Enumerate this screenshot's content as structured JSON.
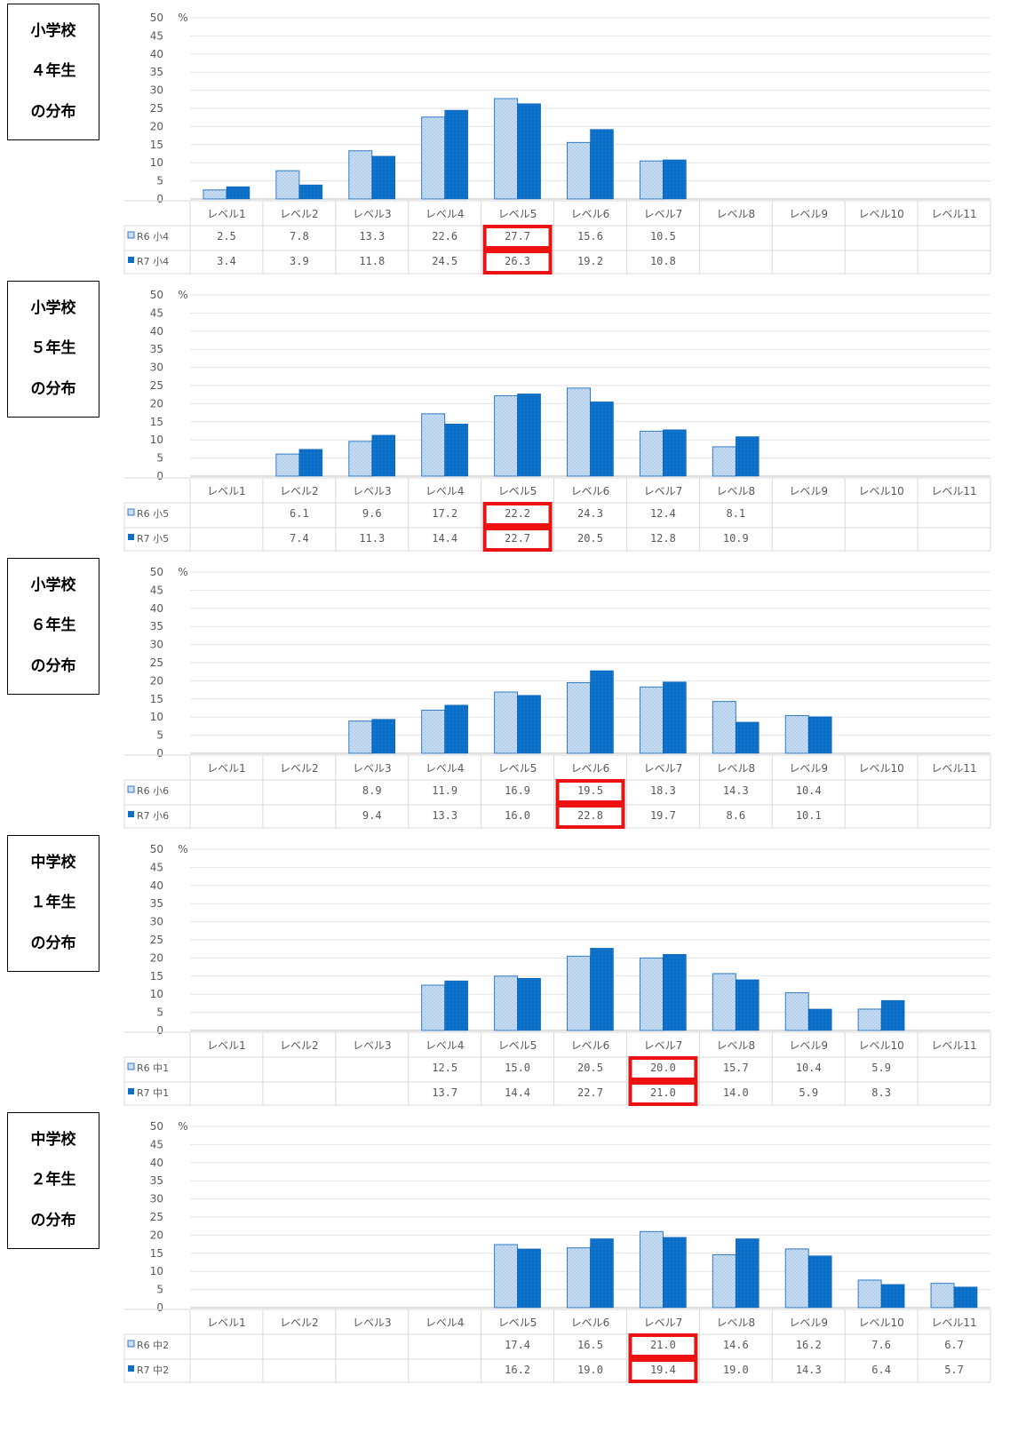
{
  "colors": {
    "r6_fill": "#c9def3",
    "r6_stroke": "#2f7cc6",
    "r7_fill": "#0b6fc8",
    "highlight": "#ee1111"
  },
  "chart_data": [
    {
      "type": "bar",
      "panel_label": [
        "小学校",
        "４年生",
        "の分布"
      ],
      "unit": "%",
      "ylim": [
        0,
        50
      ],
      "yticks": [
        0,
        5,
        10,
        15,
        20,
        25,
        30,
        35,
        40,
        45,
        50
      ],
      "categories": [
        "レベル1",
        "レベル2",
        "レベル3",
        "レベル4",
        "レベル5",
        "レベル6",
        "レベル7",
        "レベル8",
        "レベル9",
        "レベル10",
        "レベル11"
      ],
      "series": [
        {
          "name": "R6 小4",
          "values": [
            2.5,
            7.8,
            13.3,
            22.6,
            27.7,
            15.6,
            10.5,
            null,
            null,
            null,
            null
          ]
        },
        {
          "name": "R7 小4",
          "values": [
            3.4,
            3.9,
            11.8,
            24.5,
            26.3,
            19.2,
            10.8,
            null,
            null,
            null,
            null
          ]
        }
      ],
      "labels": [
        [
          "2.5",
          "7.8",
          "13.3",
          "22.6",
          "27.7",
          "15.6",
          "10.5",
          "",
          "",
          "",
          ""
        ],
        [
          "3.4",
          "3.9",
          "11.8",
          "24.5",
          "26.3",
          "19.2",
          "10.8",
          "",
          "",
          "",
          ""
        ]
      ],
      "highlight_index": 4
    },
    {
      "type": "bar",
      "panel_label": [
        "小学校",
        "５年生",
        "の分布"
      ],
      "unit": "%",
      "ylim": [
        0,
        50
      ],
      "yticks": [
        0,
        5,
        10,
        15,
        20,
        25,
        30,
        35,
        40,
        45,
        50
      ],
      "categories": [
        "レベル1",
        "レベル2",
        "レベル3",
        "レベル4",
        "レベル5",
        "レベル6",
        "レベル7",
        "レベル8",
        "レベル9",
        "レベル10",
        "レベル11"
      ],
      "series": [
        {
          "name": "R6 小5",
          "values": [
            null,
            6.1,
            9.6,
            17.2,
            22.2,
            24.3,
            12.4,
            8.1,
            null,
            null,
            null
          ]
        },
        {
          "name": "R7 小5",
          "values": [
            null,
            7.4,
            11.3,
            14.4,
            22.7,
            20.5,
            12.8,
            10.9,
            null,
            null,
            null
          ]
        }
      ],
      "labels": [
        [
          "",
          "6.1",
          "9.6",
          "17.2",
          "22.2",
          "24.3",
          "12.4",
          "8.1",
          "",
          "",
          ""
        ],
        [
          "",
          "7.4",
          "11.3",
          "14.4",
          "22.7",
          "20.5",
          "12.8",
          "10.9",
          "",
          "",
          ""
        ]
      ],
      "highlight_index": 4
    },
    {
      "type": "bar",
      "panel_label": [
        "小学校",
        "６年生",
        "の分布"
      ],
      "unit": "%",
      "ylim": [
        0,
        50
      ],
      "yticks": [
        0,
        5,
        10,
        15,
        20,
        25,
        30,
        35,
        40,
        45,
        50
      ],
      "categories": [
        "レベル1",
        "レベル2",
        "レベル3",
        "レベル4",
        "レベル5",
        "レベル6",
        "レベル7",
        "レベル8",
        "レベル9",
        "レベル10",
        "レベル11"
      ],
      "series": [
        {
          "name": "R6 小6",
          "values": [
            null,
            null,
            8.9,
            11.9,
            16.9,
            19.5,
            18.3,
            14.3,
            10.4,
            null,
            null
          ]
        },
        {
          "name": "R7 小6",
          "values": [
            null,
            null,
            9.4,
            13.3,
            16.0,
            22.8,
            19.7,
            8.6,
            10.1,
            null,
            null
          ]
        }
      ],
      "labels": [
        [
          "",
          "",
          "8.9",
          "11.9",
          "16.9",
          "19.5",
          "18.3",
          "14.3",
          "10.4",
          "",
          ""
        ],
        [
          "",
          "",
          "9.4",
          "13.3",
          "16.0",
          "22.8",
          "19.7",
          "8.6",
          "10.1",
          "",
          ""
        ]
      ],
      "highlight_index": 5
    },
    {
      "type": "bar",
      "panel_label": [
        "中学校",
        "１年生",
        "の分布"
      ],
      "unit": "%",
      "ylim": [
        0,
        50
      ],
      "yticks": [
        0,
        5,
        10,
        15,
        20,
        25,
        30,
        35,
        40,
        45,
        50
      ],
      "categories": [
        "レベル1",
        "レベル2",
        "レベル3",
        "レベル4",
        "レベル5",
        "レベル6",
        "レベル7",
        "レベル8",
        "レベル9",
        "レベル10",
        "レベル11"
      ],
      "series": [
        {
          "name": "R6 中1",
          "values": [
            null,
            null,
            null,
            12.5,
            15.0,
            20.5,
            20.0,
            15.7,
            10.4,
            5.9,
            null
          ]
        },
        {
          "name": "R7 中1",
          "values": [
            null,
            null,
            null,
            13.7,
            14.4,
            22.7,
            21.0,
            14.0,
            5.9,
            8.3,
            null
          ]
        }
      ],
      "labels": [
        [
          "",
          "",
          "",
          "12.5",
          "15.0",
          "20.5",
          "20.0",
          "15.7",
          "10.4",
          "5.9",
          ""
        ],
        [
          "",
          "",
          "",
          "13.7",
          "14.4",
          "22.7",
          "21.0",
          "14.0",
          "5.9",
          "8.3",
          ""
        ]
      ],
      "highlight_index": 6
    },
    {
      "type": "bar",
      "panel_label": [
        "中学校",
        "２年生",
        "の分布"
      ],
      "unit": "%",
      "ylim": [
        0,
        50
      ],
      "yticks": [
        0,
        5,
        10,
        15,
        20,
        25,
        30,
        35,
        40,
        45,
        50
      ],
      "categories": [
        "レベル1",
        "レベル2",
        "レベル3",
        "レベル4",
        "レベル5",
        "レベル6",
        "レベル7",
        "レベル8",
        "レベル9",
        "レベル10",
        "レベル11"
      ],
      "series": [
        {
          "name": "R6 中2",
          "values": [
            null,
            null,
            null,
            null,
            17.4,
            16.5,
            21.0,
            14.6,
            16.2,
            7.6,
            6.7
          ]
        },
        {
          "name": "R7 中2",
          "values": [
            null,
            null,
            null,
            null,
            16.2,
            19.0,
            19.4,
            19.0,
            14.3,
            6.4,
            5.7
          ]
        }
      ],
      "labels": [
        [
          "",
          "",
          "",
          "",
          "17.4",
          "16.5",
          "21.0",
          "14.6",
          "16.2",
          "7.6",
          "6.7"
        ],
        [
          "",
          "",
          "",
          "",
          "16.2",
          "19.0",
          "19.4",
          "19.0",
          "14.3",
          "6.4",
          "5.7"
        ]
      ],
      "highlight_index": 6
    }
  ]
}
